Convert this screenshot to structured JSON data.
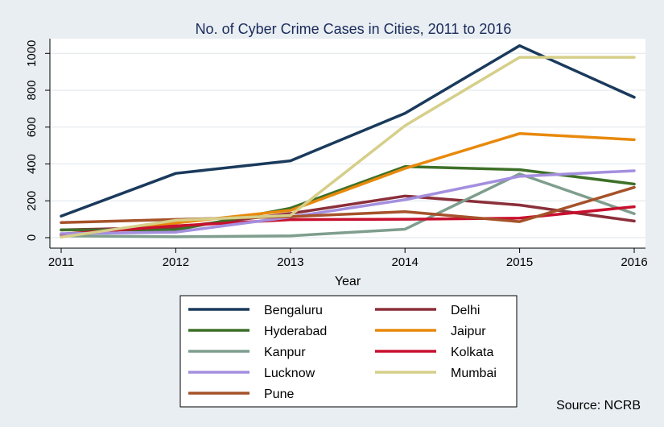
{
  "chart_data": {
    "type": "line",
    "title": "No. of Cyber Crime Cases in Cities, 2011 to 2016",
    "xlabel": "Year",
    "ylabel": "",
    "x": [
      2011,
      2012,
      2013,
      2014,
      2015,
      2016
    ],
    "x_ticks": [
      "2011",
      "2012",
      "2013",
      "2014",
      "2015",
      "2016"
    ],
    "y_ticks": [
      "0",
      "200",
      "400",
      "600",
      "800",
      "1000"
    ],
    "ylim": [
      0,
      1080
    ],
    "grid": true,
    "legend_position": "bottom",
    "series": [
      {
        "name": "Bengaluru",
        "color": "#1a3a5c",
        "values": [
          117,
          349,
          417,
          675,
          1042,
          762
        ]
      },
      {
        "name": "Delhi",
        "color": "#8b2f3a",
        "values": [
          42,
          56,
          131,
          226,
          177,
          90
        ]
      },
      {
        "name": "Hyderabad",
        "color": "#3d7028",
        "values": [
          42,
          42,
          160,
          386,
          369,
          291
        ]
      },
      {
        "name": "Jaipur",
        "color": "#e8890c",
        "values": [
          5,
          80,
          148,
          376,
          565,
          532
        ]
      },
      {
        "name": "Kanpur",
        "color": "#7f9e8e",
        "values": [
          10,
          5,
          10,
          46,
          346,
          130
        ]
      },
      {
        "name": "Kolkata",
        "color": "#c8102e",
        "values": [
          19,
          64,
          98,
          100,
          106,
          168
        ]
      },
      {
        "name": "Lucknow",
        "color": "#a48fdf",
        "values": [
          22,
          30,
          112,
          206,
          333,
          363
        ]
      },
      {
        "name": "Mumbai",
        "color": "#d6cf8a",
        "values": [
          3,
          94,
          121,
          608,
          979,
          979
        ]
      },
      {
        "name": "Pune",
        "color": "#a5522a",
        "values": [
          82,
          99,
          114,
          141,
          87,
          273
        ]
      }
    ]
  },
  "source_note": "Source: NCRB"
}
